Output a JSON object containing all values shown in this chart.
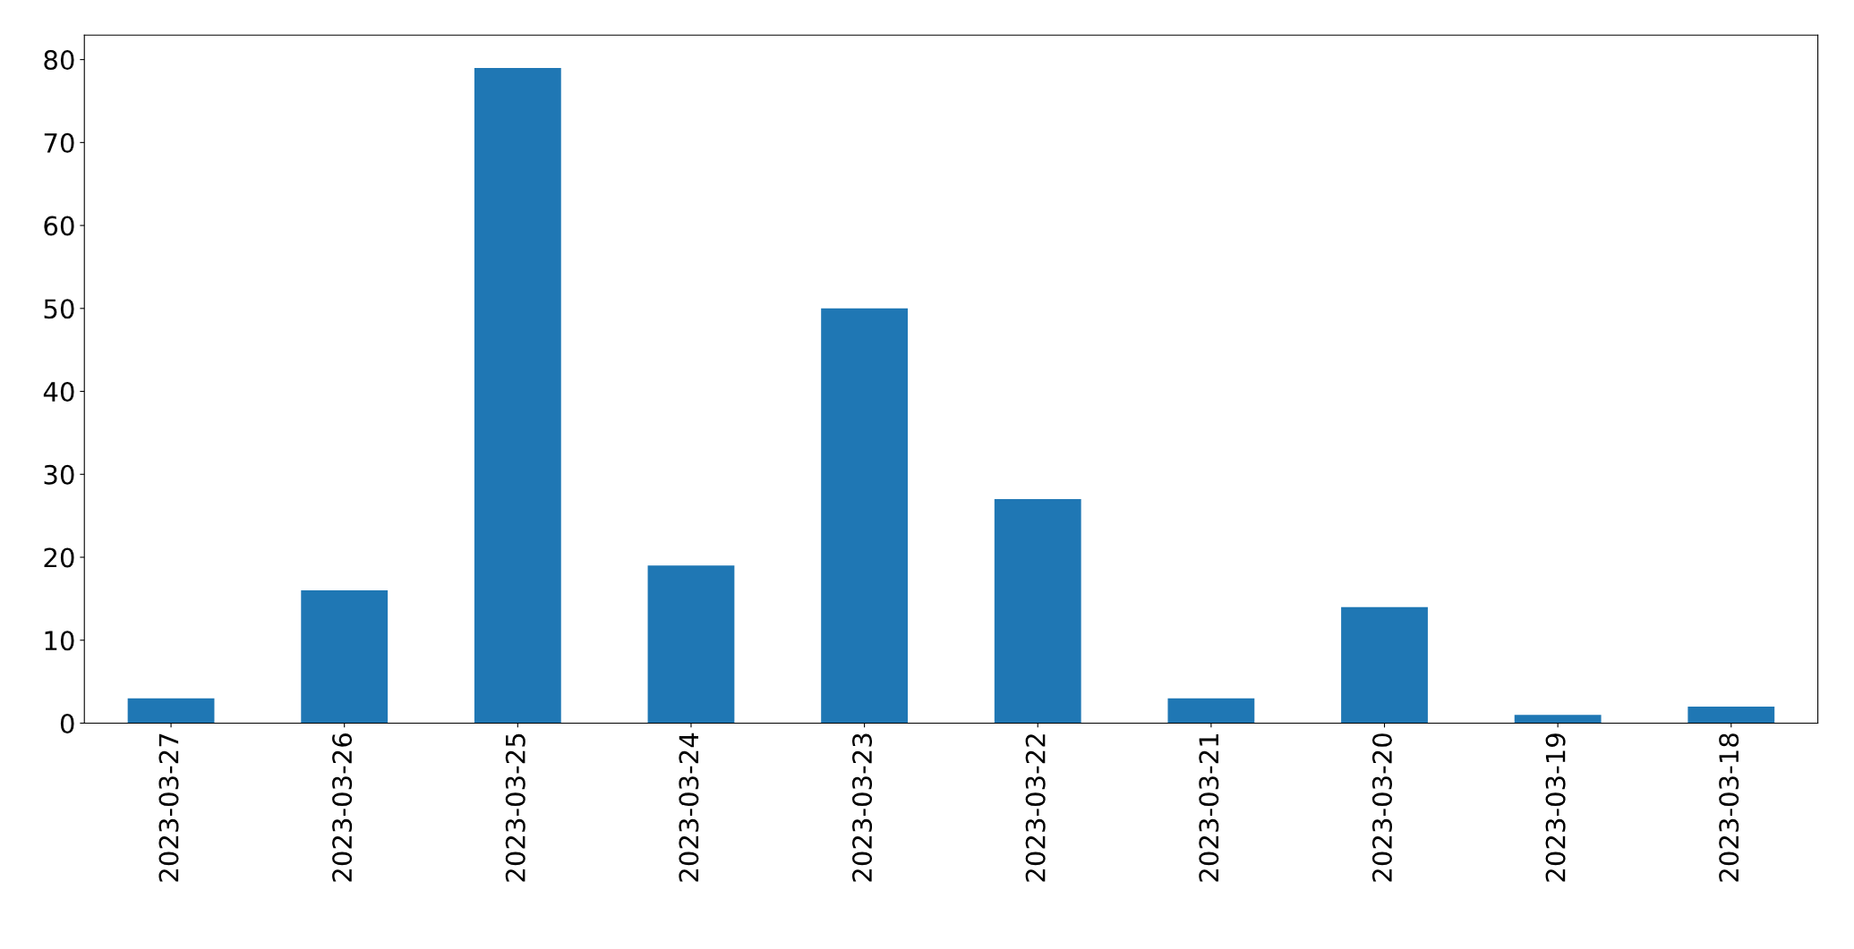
{
  "chart_data": {
    "type": "bar",
    "categories": [
      "2023-03-27",
      "2023-03-26",
      "2023-03-25",
      "2023-03-24",
      "2023-03-23",
      "2023-03-22",
      "2023-03-21",
      "2023-03-20",
      "2023-03-19",
      "2023-03-18"
    ],
    "values": [
      3,
      16,
      79,
      19,
      50,
      27,
      3,
      14,
      1,
      2
    ],
    "color": "#1f77b4",
    "ylim": [
      0,
      82.95
    ],
    "yticks": [
      0,
      10,
      20,
      30,
      40,
      50,
      60,
      70,
      80
    ],
    "grid": false,
    "legend": false
  }
}
